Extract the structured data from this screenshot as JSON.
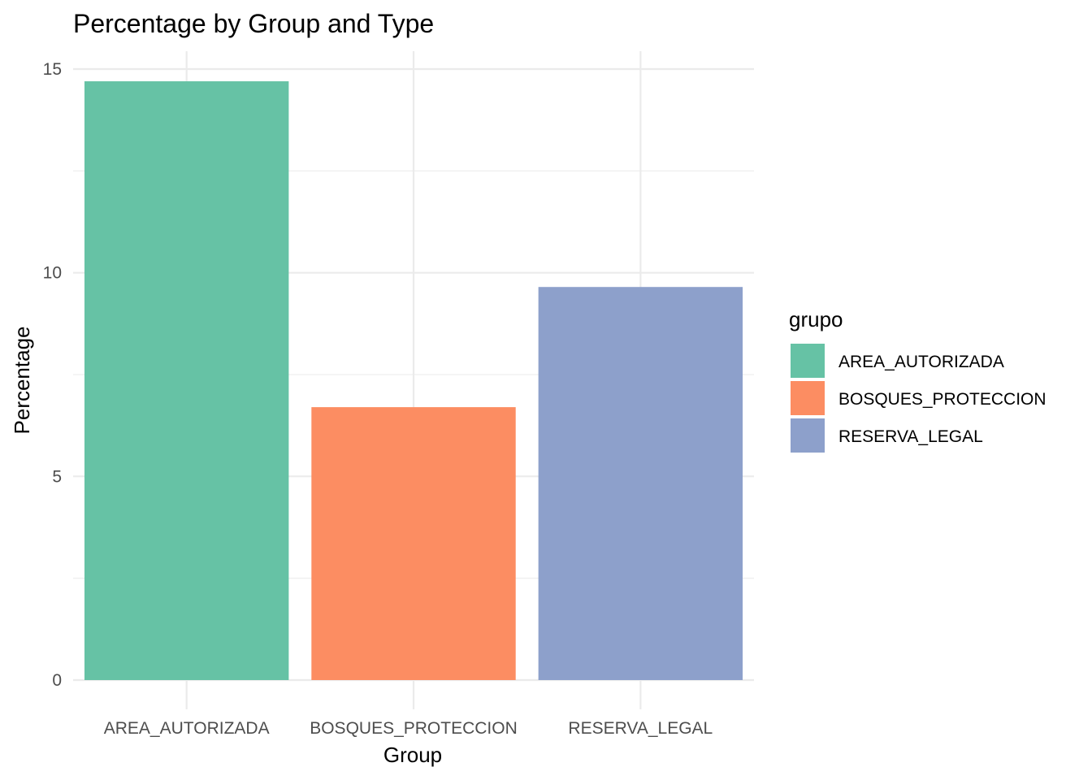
{
  "chart_data": {
    "type": "bar",
    "title": "Percentage by Group and Type",
    "xlabel": "Group",
    "ylabel": "Percentage",
    "categories": [
      "AREA_AUTORIZADA",
      "BOSQUES_PROTECCION",
      "RESERVA_LEGAL"
    ],
    "values": [
      14.7,
      6.7,
      9.65
    ],
    "colors": [
      "#66c2a5",
      "#fc8d62",
      "#8da0cb"
    ],
    "ylim": [
      0,
      15.4
    ],
    "yticks": [
      0,
      5,
      10,
      15
    ],
    "grid": true,
    "legend": {
      "title": "grupo",
      "position": "right",
      "entries": [
        "AREA_AUTORIZADA",
        "BOSQUES_PROTECCION",
        "RESERVA_LEGAL"
      ]
    }
  }
}
